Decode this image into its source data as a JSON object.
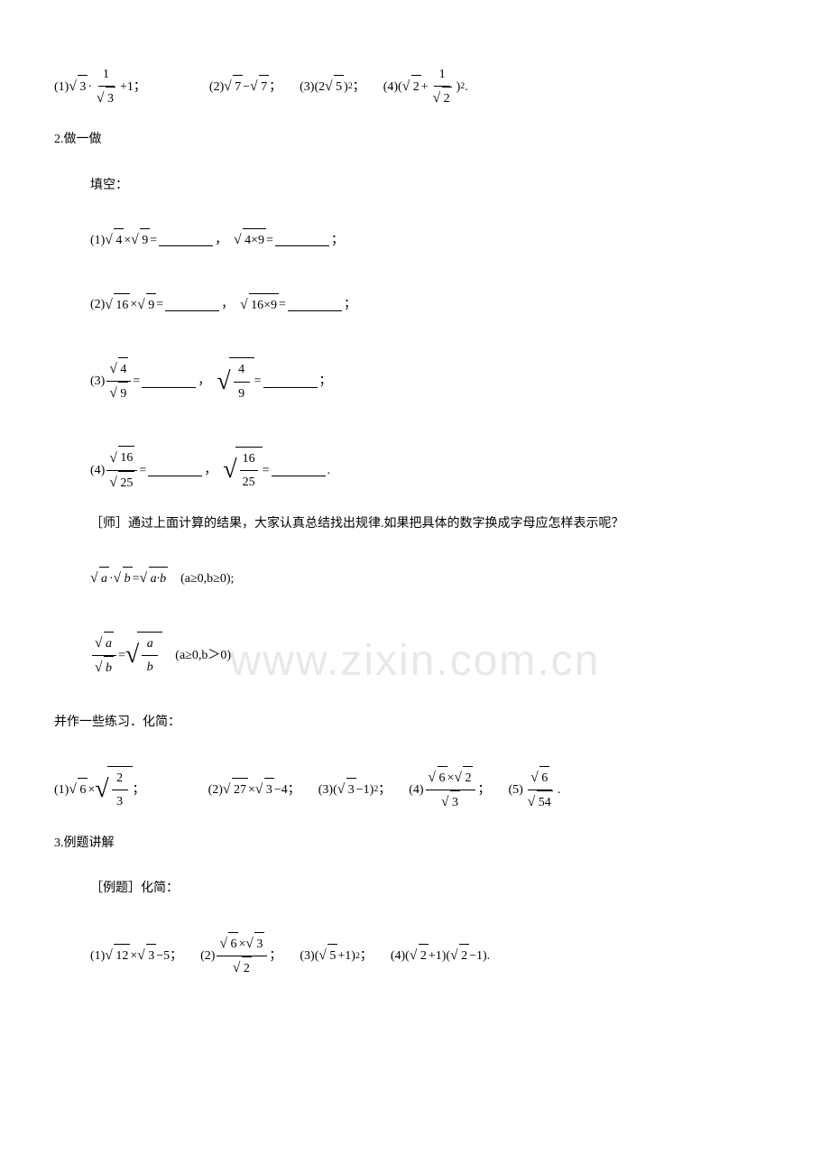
{
  "watermark_text": "www.zixin.com.cn",
  "watermark_color": "#e8e8e8",
  "background_color": "#ffffff",
  "text_color": "#000000",
  "font_family": "SimSun",
  "base_fontsize": 14,
  "line1": {
    "items": [
      {
        "num": "(1)",
        "expr_parts": [
          "√3",
          "·",
          "1/√3",
          "+1",
          ";"
        ]
      },
      {
        "num": "(2)",
        "expr_parts": [
          "√7",
          "−",
          "√7",
          ";"
        ]
      },
      {
        "num": "(3)",
        "expr_parts": [
          "(2",
          "√5",
          ")²;"
        ]
      },
      {
        "num": "(4)",
        "expr_parts": [
          "(",
          "√2",
          "+",
          "1/√2",
          ")²."
        ]
      }
    ]
  },
  "section2": {
    "heading": "2.做一做",
    "subheading": "填空：",
    "items": [
      {
        "num": "(1)",
        "left_a": "4",
        "left_b": "9",
        "op": "×",
        "right": "4×9"
      },
      {
        "num": "(2)",
        "left_a": "16",
        "left_b": "9",
        "op": "×",
        "right": "16×9"
      },
      {
        "num": "(3)",
        "left_num": "4",
        "left_den": "9",
        "right_num": "4",
        "right_den": "9",
        "type": "frac"
      },
      {
        "num": "(4)",
        "left_num": "16",
        "left_den": "25",
        "right_num": "16",
        "right_den": "25",
        "type": "frac"
      }
    ]
  },
  "teacher_note": "［师］通过上面计算的结果，大家认真总结找出规律.如果把具体的数字换成字母应怎样表示呢？",
  "formulas": {
    "f1_lhs_a": "a",
    "f1_lhs_b": "b",
    "f1_rhs": "a·b",
    "f1_cond": "(a≥0,b≥0);",
    "f2_lhs_num": "a",
    "f2_lhs_den": "b",
    "f2_rhs_num": "a",
    "f2_rhs_den": "b",
    "f2_cond": "(a≥0,b＞0)"
  },
  "practice_intro": "并作一些练习．化简：",
  "practice": {
    "items": [
      {
        "num": "(1)",
        "parts": [
          "√6",
          "×",
          "√(2/3)",
          ";"
        ]
      },
      {
        "num": "(2)",
        "parts": [
          "√27",
          "×",
          "√3",
          "−4;"
        ]
      },
      {
        "num": "(3)",
        "parts": [
          "(",
          "√3",
          "−1)²;"
        ]
      },
      {
        "num": "(4)",
        "parts": [
          "(√6×√2)/√3",
          ";"
        ]
      },
      {
        "num": "(5)",
        "parts": [
          "√6/√54",
          "."
        ]
      }
    ]
  },
  "section3": {
    "heading": "3.例题讲解",
    "subheading": "［例题］化简：",
    "items": [
      {
        "num": "(1)",
        "expr": "√12 × √3 − 5"
      },
      {
        "num": "(2)",
        "expr": "(√6×√3)/√2"
      },
      {
        "num": "(3)",
        "expr": "(√5+1)²"
      },
      {
        "num": "(4)",
        "expr": "(√2+1)(√2−1)"
      }
    ]
  }
}
